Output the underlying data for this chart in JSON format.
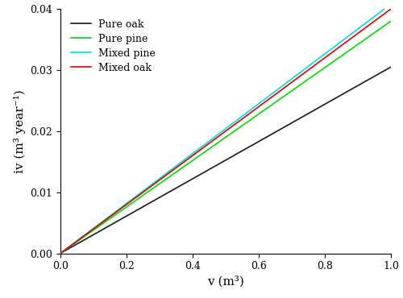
{
  "lines": [
    {
      "label": "Pure oak",
      "slope": 0.0305,
      "color": "#1a1a1a",
      "lw": 1.2,
      "zorder": 1
    },
    {
      "label": "Pure pine",
      "slope": 0.038,
      "color": "#00dd00",
      "lw": 1.2,
      "zorder": 2
    },
    {
      "label": "Mixed pine",
      "slope": 0.0408,
      "color": "#00dddd",
      "lw": 1.2,
      "zorder": 3
    },
    {
      "label": "Mixed oak",
      "slope": 0.04,
      "color": "#dd0000",
      "lw": 1.2,
      "zorder": 4
    }
  ],
  "x_min": 0.0,
  "x_max": 1.0,
  "y_min": 0.0,
  "y_max": 0.04,
  "xlabel": "v (m³)",
  "ylabel": "iv (m³ year⁻¹)",
  "x_ticks": [
    0.0,
    0.2,
    0.4,
    0.6,
    0.8,
    1.0
  ],
  "y_ticks": [
    0.0,
    0.01,
    0.02,
    0.03,
    0.04
  ],
  "legend_loc": "upper left",
  "legend_fontsize": 9,
  "axis_fontsize": 11,
  "tick_fontsize": 9,
  "figsize": [
    5.0,
    3.7
  ],
  "dpi": 100,
  "font_family": "serif",
  "background_color": "#ffffff"
}
